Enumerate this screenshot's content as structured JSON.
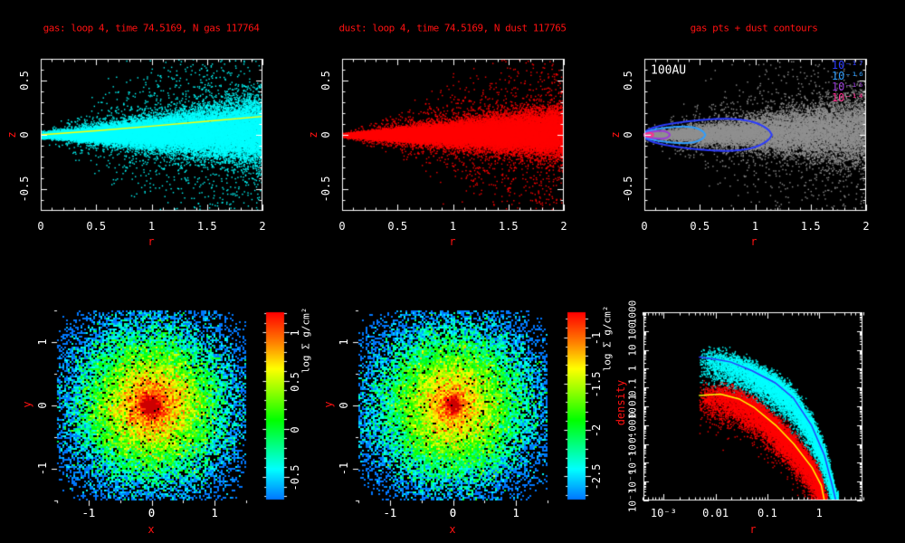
{
  "figure": {
    "background": "#000000",
    "tick_text_color": "#ffffff",
    "label_text_color": "#ff1111"
  },
  "top_row": {
    "gas_panel": {
      "title": "gas: loop 4, time 74.5169, N gas 117764",
      "xlabel": "r",
      "ylabel": "z",
      "xtick_labels": [
        "0",
        "0.5",
        "1",
        "1.5",
        "2"
      ],
      "ytick_labels": [
        "0.5",
        "0",
        "-0.5"
      ]
    },
    "dust_panel": {
      "title": "dust: loop 4, time 74.5169, N dust 117765",
      "xlabel": "r",
      "ylabel": "z",
      "xtick_labels": [
        "0",
        "0.5",
        "1",
        "1.5",
        "2"
      ],
      "ytick_labels": [
        "0.5",
        "0",
        "-0.5"
      ]
    },
    "contour_panel": {
      "title": "gas pts + dust contours",
      "xlabel": "r",
      "ylabel": "z",
      "annotation": "100AU",
      "xtick_labels": [
        "0",
        "0.5",
        "1",
        "1.5",
        "2"
      ],
      "ytick_labels": [
        "0.5",
        "0",
        "-0.5"
      ],
      "legend": [
        {
          "label": "10⁻¹⁷",
          "color": "#2b3bff"
        },
        {
          "label": "10⁻¹⁶",
          "color": "#2e9eff"
        },
        {
          "label": "10⁻¹⁵",
          "color": "#9a3cd8"
        },
        {
          "label": "10⁻¹⁴",
          "color": "#ff2e90"
        }
      ]
    }
  },
  "bottom_row": {
    "gas_map": {
      "xlabel": "x",
      "ylabel": "y",
      "xtick_labels": [
        "-1",
        "0",
        "1"
      ],
      "ytick_labels": [
        "1",
        "0",
        "-1"
      ],
      "colorbar": {
        "label": "log Σ g/cm²",
        "tick_labels": [
          "1",
          "0.5",
          "0",
          "-0.5"
        ]
      }
    },
    "dust_map": {
      "xlabel": "x",
      "ylabel": "y",
      "xtick_labels": [
        "-1",
        "0",
        "1"
      ],
      "ytick_labels": [
        "1",
        "0",
        "-1"
      ],
      "colorbar": {
        "label": "log Σ g/cm²",
        "tick_labels": [
          "-1",
          "-1.5",
          "-2",
          "-2.5"
        ]
      }
    },
    "profile_panel": {
      "xlabel": "r",
      "ylabel": "density",
      "xtick_labels": [
        "10⁻³",
        "0.01",
        "0.1",
        "1"
      ],
      "ytick_labels": [
        "1000",
        "100",
        "10",
        "1",
        "0.1",
        "0.01",
        "0.0010",
        "10⁻⁴",
        "10⁻⁵",
        "10⁻⁶",
        "10⁻⁷"
      ]
    }
  },
  "chart_data": [
    {
      "id": "gas_rz",
      "type": "scatter",
      "title": "gas: loop 4, time 74.5169, N gas 117764",
      "xlabel": "r",
      "ylabel": "z",
      "xlim": [
        0,
        2
      ],
      "ylim": [
        -0.7,
        0.7
      ],
      "xticks": [
        0,
        0.5,
        1,
        1.5,
        2
      ],
      "yticks": [
        0.5,
        0,
        -0.5
      ],
      "n_points": 117764,
      "point_color": "#00ffff",
      "distribution": "flared disk wedge from origin; z std ≈ 0.012 + 0.062·r^1.2 with ~7% diffuse halo",
      "overlay_line": {
        "color": "#ffff00",
        "points": [
          [
            0,
            0
          ],
          [
            0.5,
            0.038
          ],
          [
            1,
            0.08
          ],
          [
            1.5,
            0.125
          ],
          [
            2,
            0.17
          ]
        ]
      }
    },
    {
      "id": "dust_rz",
      "type": "scatter",
      "title": "dust: loop 4, time 74.5169, N dust 117765",
      "xlabel": "r",
      "ylabel": "z",
      "xlim": [
        0,
        2
      ],
      "ylim": [
        -0.7,
        0.7
      ],
      "xticks": [
        0,
        0.5,
        1,
        1.5,
        2
      ],
      "yticks": [
        0.5,
        0,
        -0.5
      ],
      "n_points": 117765,
      "point_color": "#ff0000",
      "distribution": "settled dust wedge from origin; z std ≈ 0.008 + 0.048·r^1.15 with ~8% halo, dissolving to speckle at r>1.2"
    },
    {
      "id": "gas_pts_dust_contours",
      "type": "scatter+contour",
      "title": "gas pts + dust contours",
      "xlabel": "r",
      "ylabel": "z",
      "xlim": [
        0,
        2
      ],
      "ylim": [
        -0.7,
        0.7
      ],
      "annotation": "100AU",
      "point_color": "#909090",
      "contour_levels": [
        {
          "level": "10⁻¹⁷",
          "color": "#2b3bff",
          "r_extent": 1.15,
          "z_half_height": 0.145
        },
        {
          "level": "10⁻¹⁶",
          "color": "#2e9eff",
          "r_extent": 0.55,
          "z_half_height": 0.075
        },
        {
          "level": "10⁻¹⁵",
          "color": "#9a3cd8",
          "r_extent": 0.23,
          "z_half_height": 0.035
        },
        {
          "level": "10⁻¹⁴",
          "color": "#ff2e90",
          "r_extent": 0.08,
          "z_half_height": 0.016
        }
      ]
    },
    {
      "id": "gas_surface_density",
      "type": "heatmap",
      "xlabel": "x",
      "ylabel": "y",
      "xlim": [
        -1.5,
        1.5
      ],
      "ylim": [
        -1.5,
        1.5
      ],
      "xticks": [
        -1,
        0,
        1
      ],
      "yticks": [
        1,
        0,
        -1
      ],
      "colorbar": {
        "label": "log Σ g/cm²",
        "ticks": [
          1,
          0.5,
          0,
          -0.5
        ],
        "range_top_bottom": [
          1.21,
          -0.735
        ]
      },
      "profile": "log Σ ≈ 1.25 − 1.33·√(x²+y²) + core bump at origin, speckle noise, black dropout toward edges"
    },
    {
      "id": "dust_surface_density",
      "type": "heatmap",
      "xlabel": "x",
      "ylabel": "y",
      "xlim": [
        -1.5,
        1.5
      ],
      "ylim": [
        -1.5,
        1.5
      ],
      "xticks": [
        -1,
        0,
        1
      ],
      "yticks": [
        1,
        0,
        -1
      ],
      "colorbar": {
        "label": "log Σ g/cm²",
        "ticks": [
          -1,
          -1.5,
          -2,
          -2.5
        ],
        "range_top_bottom": [
          -0.73,
          -2.75
        ]
      },
      "profile": "log Σ ≈ −0.85 − 1.27·√(x²+y²) + core bump at origin, speckle noise, black dropout toward edges"
    },
    {
      "id": "density_profile",
      "type": "scatter+line",
      "xlabel": "r",
      "ylabel": "density",
      "xscale": "log",
      "yscale": "log",
      "xlim": [
        0.00038,
        7
      ],
      "ylim": [
        1e-07,
        1000
      ],
      "xticks": [
        0.001,
        0.01,
        0.1,
        1
      ],
      "yticks": [
        1000,
        100,
        10,
        1,
        0.1,
        0.01,
        0.001,
        0.0001,
        1e-05,
        1e-06,
        1e-07
      ],
      "series": [
        {
          "name": "gas",
          "point_color": "#00ffff",
          "line_color": "#2b3bff",
          "median_log10": [
            [
              -2.32,
              0.62
            ],
            [
              -2.0,
              0.5
            ],
            [
              -1.7,
              0.35
            ],
            [
              -1.3,
              -0.1
            ],
            [
              -0.85,
              -0.75
            ],
            [
              -0.5,
              -1.55
            ],
            [
              -0.15,
              -3.0
            ],
            [
              0.1,
              -4.6
            ],
            [
              0.25,
              -6.2
            ],
            [
              0.32,
              -7.0
            ]
          ]
        },
        {
          "name": "dust",
          "point_color": "#ff0000",
          "line_color": "#ffff00",
          "median_log10": [
            [
              -2.32,
              -1.42
            ],
            [
              -1.9,
              -1.35
            ],
            [
              -1.55,
              -1.6
            ],
            [
              -1.26,
              -2.05
            ],
            [
              -0.84,
              -3.0
            ],
            [
              -0.49,
              -4.0
            ],
            [
              -0.14,
              -5.25
            ],
            [
              0.04,
              -6.2
            ],
            [
              0.1,
              -7.0
            ]
          ]
        }
      ]
    }
  ]
}
